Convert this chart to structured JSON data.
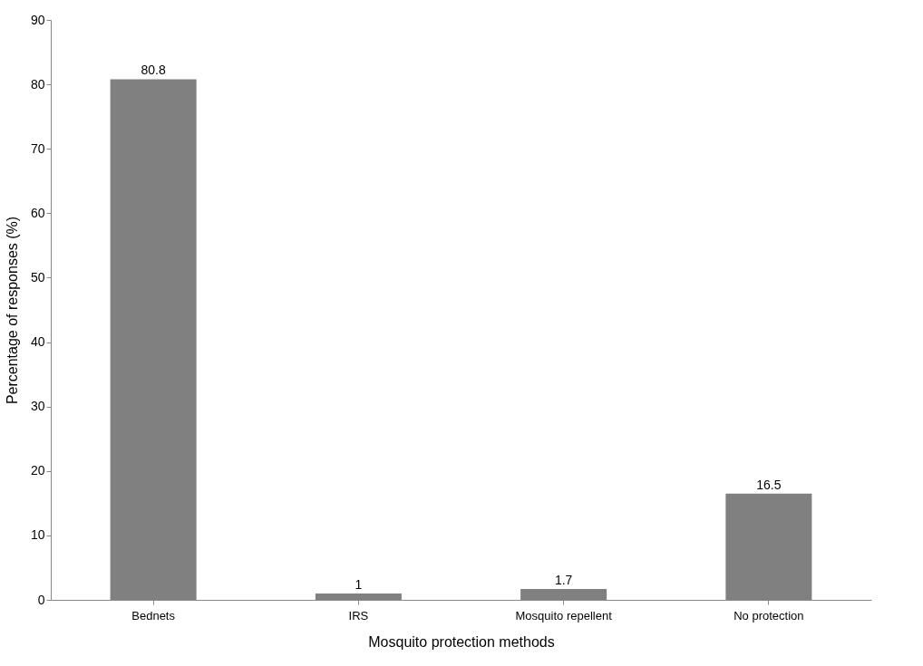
{
  "chart_data": {
    "type": "bar",
    "xlabel": "Mosquito protection methods",
    "ylabel": "Percentage of responses (%)",
    "categories": [
      "Bednets",
      "IRS",
      "Mosquito repellent",
      "No protection"
    ],
    "values": [
      80.8,
      1,
      1.7,
      16.5
    ],
    "color": "#808080",
    "ylim": [
      0,
      90
    ],
    "yticks": [
      0,
      10,
      20,
      30,
      40,
      50,
      60,
      70,
      80,
      90
    ],
    "grid": false,
    "data_labels": true
  }
}
